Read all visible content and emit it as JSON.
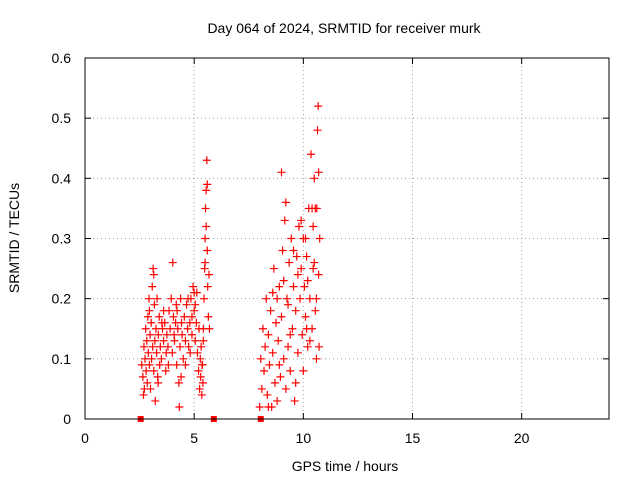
{
  "chart_data": {
    "type": "scatter",
    "title": "Day 064 of 2024, SRMTID for receiver murk",
    "xlabel": "GPS time / hours",
    "ylabel": "SRMTID / TECUs",
    "xlim": [
      0,
      24
    ],
    "ylim": [
      0,
      0.6
    ],
    "x_ticks": [
      0,
      5,
      10,
      15,
      20
    ],
    "y_ticks": [
      0,
      0.1,
      0.2,
      0.3,
      0.4,
      0.5,
      0.6
    ],
    "x_tick_labels": [
      "0",
      "5",
      "10",
      "15",
      "20"
    ],
    "y_tick_labels": [
      "0",
      "0.1",
      "0.2",
      "0.3",
      "0.4",
      "0.5",
      "0.6"
    ],
    "grid": true,
    "marker": "plus",
    "color": "#ff0000",
    "series": [
      {
        "points": [
          [
            2.6,
            0.09
          ],
          [
            2.65,
            0.07
          ],
          [
            2.7,
            0.12
          ],
          [
            2.72,
            0.05
          ],
          [
            2.75,
            0.1
          ],
          [
            2.78,
            0.15
          ],
          [
            2.8,
            0.08
          ],
          [
            2.83,
            0.13
          ],
          [
            2.85,
            0.06
          ],
          [
            2.88,
            0.17
          ],
          [
            2.9,
            0.11
          ],
          [
            2.93,
            0.2
          ],
          [
            2.95,
            0.09
          ],
          [
            2.98,
            0.14
          ],
          [
            3.0,
            0.05
          ],
          [
            3.03,
            0.16
          ],
          [
            3.05,
            0.1
          ],
          [
            3.08,
            0.22
          ],
          [
            3.1,
            0.12
          ],
          [
            3.12,
            0.25
          ],
          [
            3.15,
            0.08
          ],
          [
            3.18,
            0.19
          ],
          [
            3.2,
            0.13
          ],
          [
            3.22,
            0.03
          ],
          [
            3.25,
            0.15
          ],
          [
            3.28,
            0.11
          ],
          [
            3.3,
            0.2
          ],
          [
            3.33,
            0.07
          ],
          [
            3.36,
            0.14
          ],
          [
            3.4,
            0.17
          ],
          [
            3.45,
            0.12
          ],
          [
            3.5,
            0.1
          ],
          [
            3.55,
            0.15
          ],
          [
            3.6,
            0.13
          ],
          [
            3.65,
            0.16
          ],
          [
            3.7,
            0.08
          ],
          [
            3.75,
            0.14
          ],
          [
            3.8,
            0.12
          ],
          [
            3.85,
            0.18
          ],
          [
            3.9,
            0.15
          ],
          [
            3.95,
            0.2
          ],
          [
            4.0,
            0.11
          ],
          [
            4.02,
            0.26
          ],
          [
            4.05,
            0.17
          ],
          [
            4.1,
            0.13
          ],
          [
            4.15,
            0.16
          ],
          [
            4.2,
            0.09
          ],
          [
            4.25,
            0.15
          ],
          [
            4.3,
            0.06
          ],
          [
            4.32,
            0.02
          ],
          [
            4.35,
            0.12
          ],
          [
            4.4,
            0.07
          ],
          [
            4.45,
            0.14
          ],
          [
            4.5,
            0.1
          ],
          [
            4.55,
            0.17
          ],
          [
            4.6,
            0.13
          ],
          [
            4.65,
            0.19
          ],
          [
            4.7,
            0.15
          ],
          [
            4.75,
            0.12
          ],
          [
            4.8,
            0.16
          ],
          [
            4.85,
            0.2
          ],
          [
            4.9,
            0.14
          ],
          [
            4.95,
            0.22
          ],
          [
            5.0,
            0.18
          ],
          [
            5.05,
            0.13
          ],
          [
            5.1,
            0.16
          ],
          [
            5.15,
            0.11
          ],
          [
            5.2,
            0.08
          ],
          [
            5.22,
            0.15
          ],
          [
            5.25,
            0.05
          ],
          [
            5.28,
            0.1
          ],
          [
            5.3,
            0.07
          ],
          [
            5.32,
            0.12
          ],
          [
            5.35,
            0.04
          ],
          [
            5.38,
            0.09
          ],
          [
            5.4,
            0.06
          ],
          [
            5.42,
            0.15
          ],
          [
            5.45,
            0.2
          ],
          [
            5.48,
            0.25
          ],
          [
            5.5,
            0.3
          ],
          [
            5.52,
            0.35
          ],
          [
            5.55,
            0.38
          ],
          [
            5.58,
            0.43
          ],
          [
            5.6,
            0.28
          ],
          [
            5.62,
            0.22
          ],
          [
            5.65,
            0.17
          ],
          [
            5.68,
            0.24
          ],
          [
            5.7,
            0.15
          ],
          [
            3.35,
            0.06
          ],
          [
            3.42,
            0.09
          ],
          [
            3.6,
            0.18
          ],
          [
            3.72,
            0.11
          ],
          [
            4.08,
            0.14
          ],
          [
            4.22,
            0.18
          ],
          [
            4.38,
            0.2
          ],
          [
            4.6,
            0.09
          ],
          [
            4.72,
            0.2
          ],
          [
            4.9,
            0.17
          ],
          [
            5.05,
            0.19
          ],
          [
            5.12,
            0.21
          ],
          [
            5.55,
            0.32
          ],
          [
            5.6,
            0.39
          ],
          [
            5.5,
            0.26
          ],
          [
            2.68,
            0.04
          ],
          [
            2.95,
            0.18
          ],
          [
            3.15,
            0.24
          ],
          [
            3.52,
            0.16
          ],
          [
            3.82,
            0.09
          ],
          [
            4.18,
            0.19
          ],
          [
            4.42,
            0.16
          ],
          [
            4.82,
            0.11
          ],
          [
            5.0,
            0.21
          ],
          [
            5.42,
            0.13
          ],
          [
            5.36,
            0.09
          ]
        ]
      },
      {
        "points": [
          [
            8.0,
            0.02
          ],
          [
            8.05,
            0.1
          ],
          [
            8.1,
            0.05
          ],
          [
            8.15,
            0.15
          ],
          [
            8.2,
            0.08
          ],
          [
            8.25,
            0.12
          ],
          [
            8.3,
            0.2
          ],
          [
            8.35,
            0.04
          ],
          [
            8.4,
            0.14
          ],
          [
            8.45,
            0.09
          ],
          [
            8.5,
            0.18
          ],
          [
            8.55,
            0.02
          ],
          [
            8.6,
            0.11
          ],
          [
            8.65,
            0.25
          ],
          [
            8.7,
            0.06
          ],
          [
            8.75,
            0.16
          ],
          [
            8.8,
            0.03
          ],
          [
            8.85,
            0.13
          ],
          [
            8.9,
            0.22
          ],
          [
            8.95,
            0.07
          ],
          [
            9.0,
            0.17
          ],
          [
            9.05,
            0.28
          ],
          [
            9.1,
            0.1
          ],
          [
            9.15,
            0.33
          ],
          [
            9.2,
            0.05
          ],
          [
            9.25,
            0.2
          ],
          [
            9.3,
            0.12
          ],
          [
            9.35,
            0.26
          ],
          [
            9.4,
            0.08
          ],
          [
            9.45,
            0.3
          ],
          [
            9.5,
            0.15
          ],
          [
            9.55,
            0.22
          ],
          [
            9.6,
            0.03
          ],
          [
            9.65,
            0.18
          ],
          [
            9.7,
            0.27
          ],
          [
            9.75,
            0.11
          ],
          [
            9.8,
            0.32
          ],
          [
            9.85,
            0.2
          ],
          [
            9.9,
            0.25
          ],
          [
            9.95,
            0.14
          ],
          [
            10.0,
            0.3
          ],
          [
            10.05,
            0.22
          ],
          [
            10.1,
            0.17
          ],
          [
            10.15,
            0.27
          ],
          [
            10.2,
            0.12
          ],
          [
            10.25,
            0.35
          ],
          [
            10.3,
            0.2
          ],
          [
            10.35,
            0.44
          ],
          [
            10.4,
            0.15
          ],
          [
            10.45,
            0.25
          ],
          [
            10.5,
            0.4
          ],
          [
            10.55,
            0.18
          ],
          [
            10.6,
            0.1
          ],
          [
            10.62,
            0.35
          ],
          [
            10.65,
            0.48
          ],
          [
            10.68,
            0.52
          ],
          [
            10.7,
            0.24
          ],
          [
            10.72,
            0.12
          ],
          [
            10.75,
            0.3
          ],
          [
            8.6,
            0.21
          ],
          [
            8.9,
            0.09
          ],
          [
            9.2,
            0.36
          ],
          [
            9.3,
            0.19
          ],
          [
            9.55,
            0.28
          ],
          [
            9.75,
            0.24
          ],
          [
            9.9,
            0.33
          ],
          [
            10.1,
            0.3
          ],
          [
            10.2,
            0.23
          ],
          [
            10.3,
            0.13
          ],
          [
            10.4,
            0.35
          ],
          [
            10.5,
            0.26
          ],
          [
            10.6,
            0.2
          ],
          [
            9.0,
            0.41
          ],
          [
            8.4,
            0.02
          ],
          [
            8.8,
            0.2
          ],
          [
            9.1,
            0.23
          ],
          [
            9.4,
            0.14
          ],
          [
            9.65,
            0.06
          ],
          [
            10.0,
            0.08
          ],
          [
            10.15,
            0.15
          ],
          [
            10.45,
            0.32
          ],
          [
            10.55,
            0.35
          ],
          [
            10.7,
            0.41
          ]
        ]
      },
      {
        "marker": "square",
        "points": [
          [
            2.55,
            0
          ],
          [
            5.9,
            0
          ],
          [
            8.05,
            0
          ]
        ]
      }
    ]
  }
}
